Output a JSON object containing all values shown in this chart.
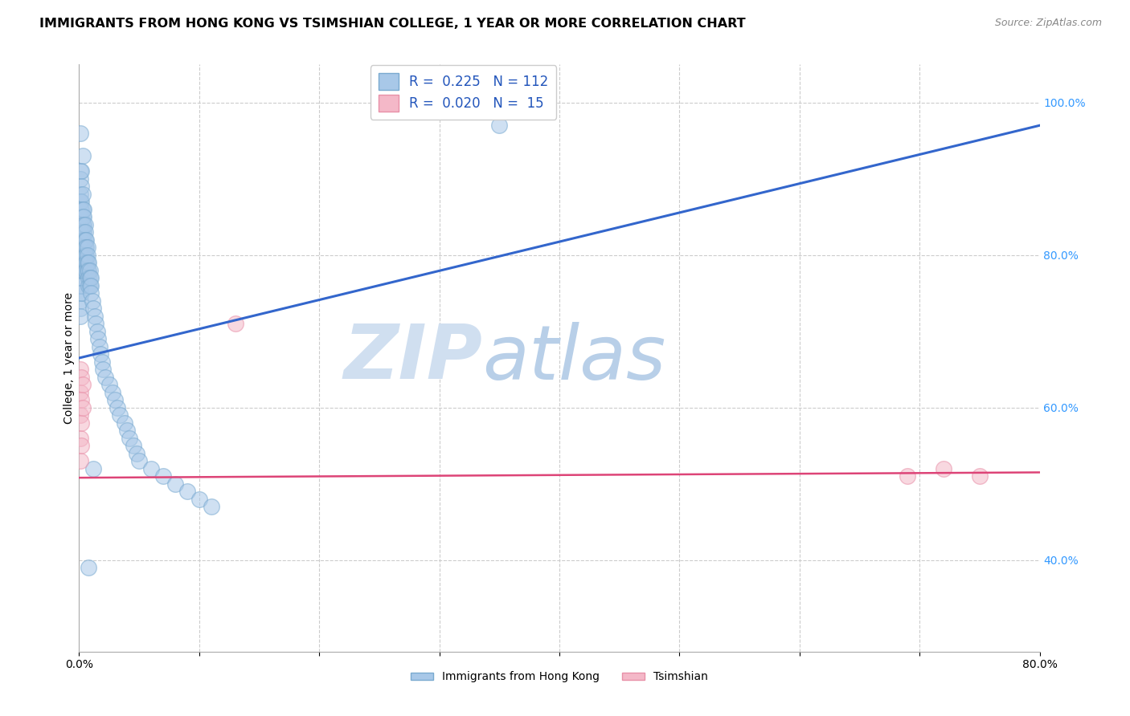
{
  "title": "IMMIGRANTS FROM HONG KONG VS TSIMSHIAN COLLEGE, 1 YEAR OR MORE CORRELATION CHART",
  "source": "Source: ZipAtlas.com",
  "ylabel": "College, 1 year or more",
  "xlim": [
    0.0,
    0.8
  ],
  "ylim": [
    0.28,
    1.05
  ],
  "yticks_right": [
    0.4,
    0.6,
    0.8,
    1.0
  ],
  "yticklabels_right": [
    "40.0%",
    "60.0%",
    "80.0%",
    "100.0%"
  ],
  "blue_R": 0.225,
  "blue_N": 112,
  "pink_R": 0.02,
  "pink_N": 15,
  "blue_color": "#a8c8e8",
  "blue_edge_color": "#7aaad0",
  "pink_color": "#f4b8c8",
  "pink_edge_color": "#e890a8",
  "blue_line_color": "#3366cc",
  "pink_line_color": "#dd4477",
  "watermark_color": "#d0dff0",
  "grid_color": "#cccccc",
  "background_color": "#ffffff",
  "title_fontsize": 11.5,
  "axis_fontsize": 10,
  "legend_fontsize": 12,
  "blue_line_x": [
    0.0,
    0.8
  ],
  "blue_line_y": [
    0.665,
    0.97
  ],
  "pink_line_x": [
    0.0,
    0.8
  ],
  "pink_line_y": [
    0.508,
    0.515
  ],
  "blue_scatter_x": [
    0.001,
    0.001,
    0.001,
    0.001,
    0.001,
    0.001,
    0.001,
    0.001,
    0.001,
    0.001,
    0.001,
    0.001,
    0.001,
    0.001,
    0.001,
    0.001,
    0.001,
    0.001,
    0.001,
    0.001,
    0.002,
    0.002,
    0.002,
    0.002,
    0.002,
    0.002,
    0.002,
    0.002,
    0.002,
    0.002,
    0.002,
    0.002,
    0.002,
    0.002,
    0.002,
    0.003,
    0.003,
    0.003,
    0.003,
    0.003,
    0.003,
    0.003,
    0.003,
    0.003,
    0.003,
    0.004,
    0.004,
    0.004,
    0.004,
    0.004,
    0.004,
    0.004,
    0.004,
    0.004,
    0.005,
    0.005,
    0.005,
    0.005,
    0.005,
    0.005,
    0.005,
    0.006,
    0.006,
    0.006,
    0.006,
    0.006,
    0.007,
    0.007,
    0.007,
    0.007,
    0.008,
    0.008,
    0.008,
    0.008,
    0.009,
    0.009,
    0.009,
    0.01,
    0.01,
    0.01,
    0.011,
    0.012,
    0.013,
    0.014,
    0.015,
    0.016,
    0.017,
    0.018,
    0.019,
    0.02,
    0.022,
    0.025,
    0.028,
    0.03,
    0.032,
    0.034,
    0.038,
    0.04,
    0.042,
    0.045,
    0.048,
    0.05,
    0.06,
    0.07,
    0.08,
    0.09,
    0.1,
    0.11,
    0.012,
    0.008,
    0.35,
    0.003
  ],
  "blue_scatter_y": [
    0.96,
    0.91,
    0.9,
    0.88,
    0.87,
    0.86,
    0.85,
    0.84,
    0.83,
    0.82,
    0.81,
    0.8,
    0.79,
    0.78,
    0.77,
    0.76,
    0.75,
    0.74,
    0.73,
    0.72,
    0.91,
    0.89,
    0.87,
    0.86,
    0.85,
    0.84,
    0.83,
    0.82,
    0.81,
    0.8,
    0.79,
    0.78,
    0.77,
    0.76,
    0.75,
    0.88,
    0.86,
    0.85,
    0.84,
    0.83,
    0.82,
    0.81,
    0.8,
    0.79,
    0.78,
    0.86,
    0.85,
    0.84,
    0.83,
    0.82,
    0.81,
    0.8,
    0.79,
    0.78,
    0.84,
    0.83,
    0.82,
    0.81,
    0.8,
    0.79,
    0.78,
    0.82,
    0.81,
    0.8,
    0.79,
    0.78,
    0.81,
    0.8,
    0.79,
    0.78,
    0.79,
    0.78,
    0.77,
    0.76,
    0.78,
    0.77,
    0.76,
    0.77,
    0.76,
    0.75,
    0.74,
    0.73,
    0.72,
    0.71,
    0.7,
    0.69,
    0.68,
    0.67,
    0.66,
    0.65,
    0.64,
    0.63,
    0.62,
    0.61,
    0.6,
    0.59,
    0.58,
    0.57,
    0.56,
    0.55,
    0.54,
    0.53,
    0.52,
    0.51,
    0.5,
    0.49,
    0.48,
    0.47,
    0.52,
    0.39,
    0.97,
    0.93
  ],
  "pink_scatter_x": [
    0.001,
    0.001,
    0.001,
    0.001,
    0.001,
    0.002,
    0.002,
    0.002,
    0.002,
    0.003,
    0.003,
    0.13,
    0.69,
    0.72,
    0.75
  ],
  "pink_scatter_y": [
    0.65,
    0.62,
    0.59,
    0.56,
    0.53,
    0.64,
    0.61,
    0.58,
    0.55,
    0.63,
    0.6,
    0.71,
    0.51,
    0.52,
    0.51
  ]
}
